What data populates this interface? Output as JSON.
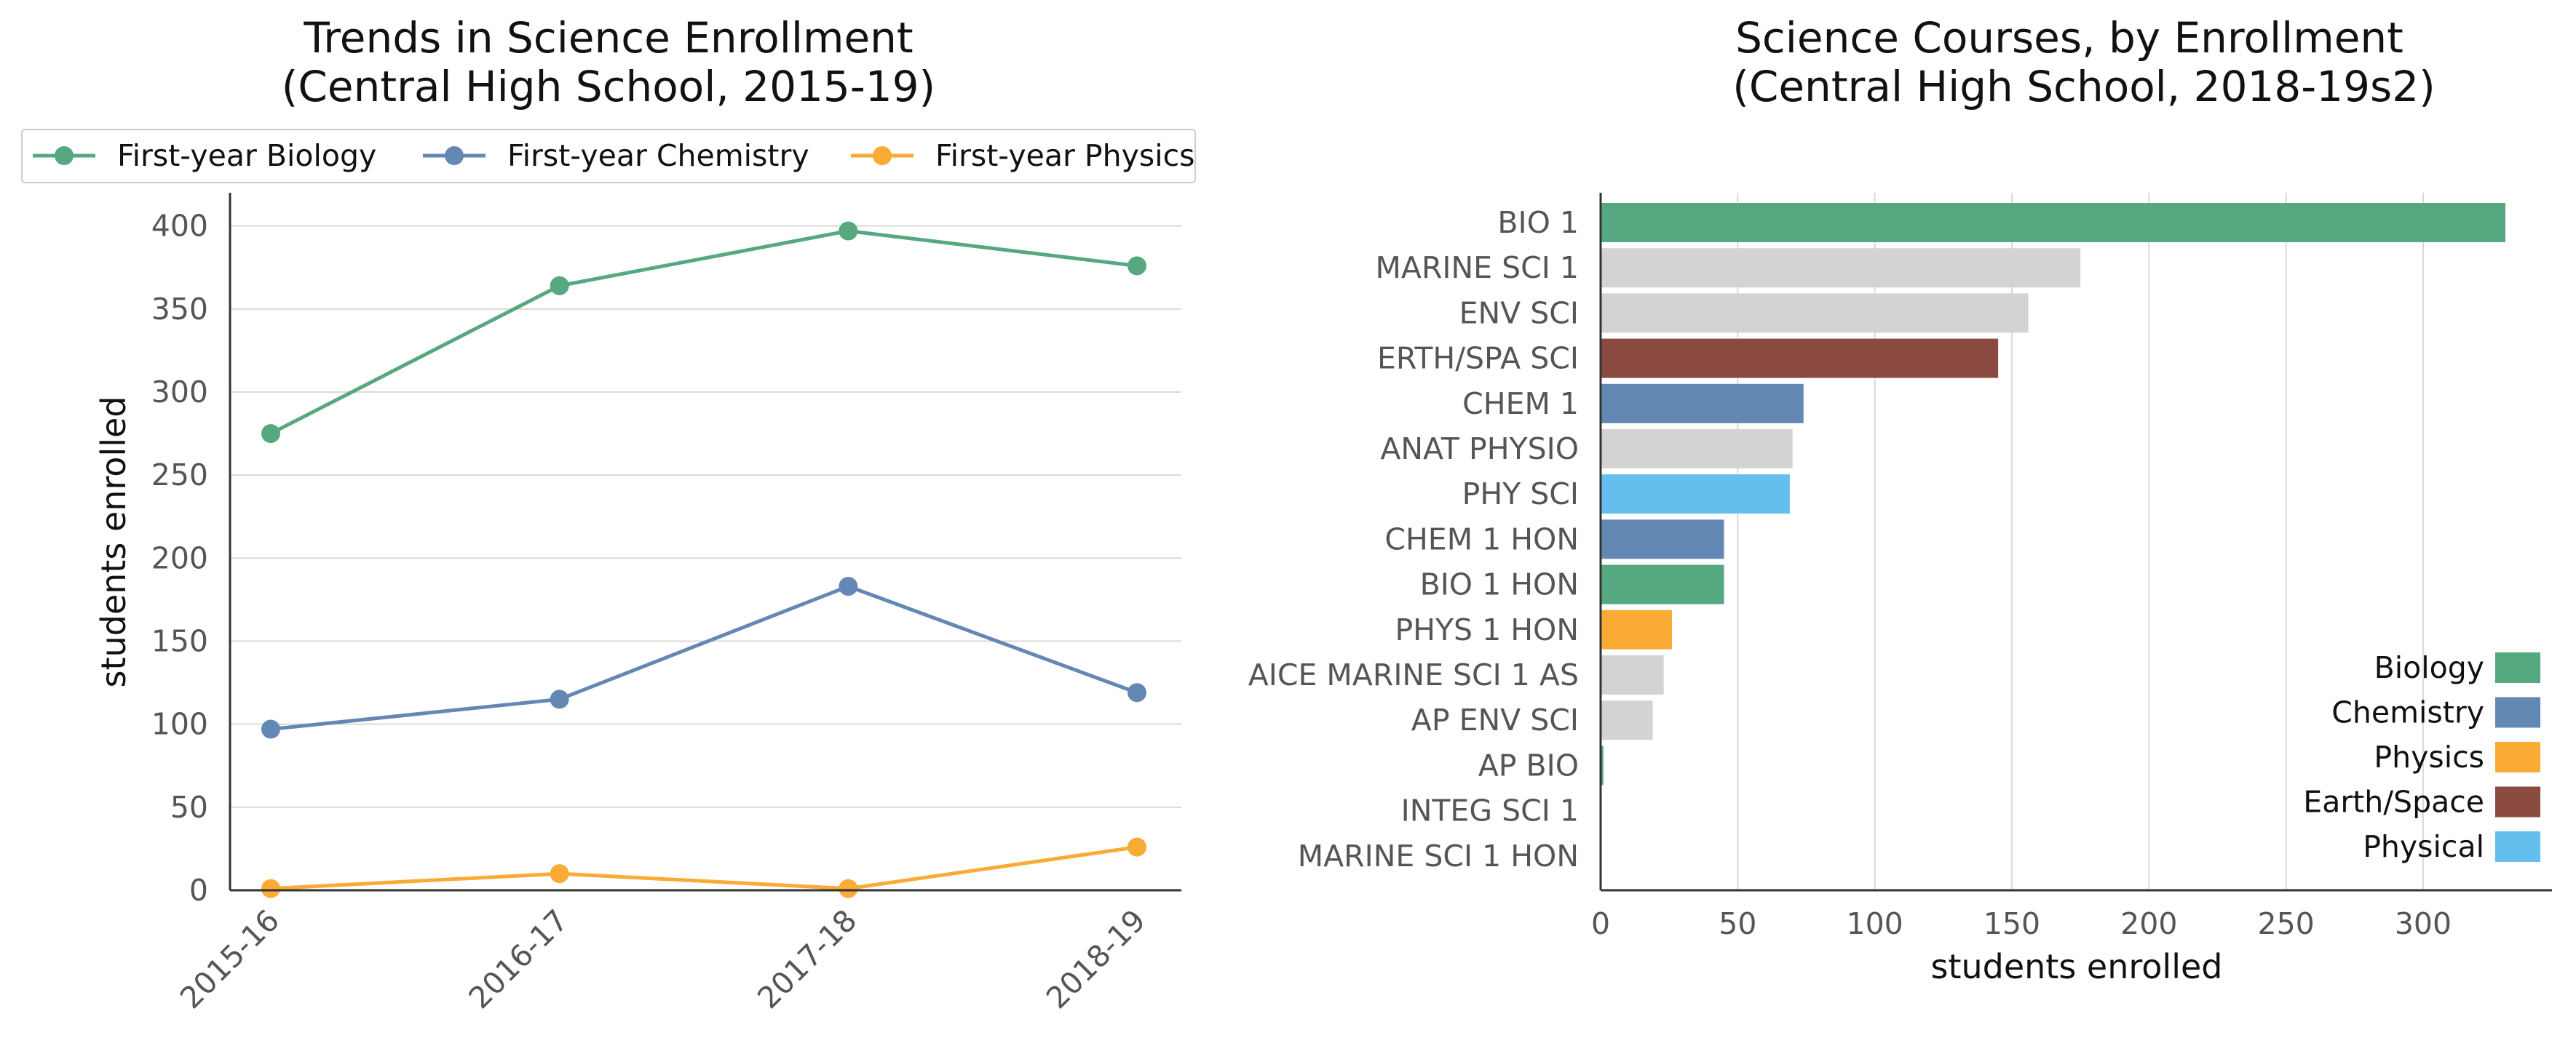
{
  "colors": {
    "biology": "#55a880",
    "chemistry": "#6488b4",
    "physics": "#f9ab36",
    "earth_space": "#8b4a40",
    "physical": "#64bfef",
    "other": "#d3d3d3"
  },
  "chart_data": [
    {
      "type": "line",
      "title_line1": "Trends in Science Enrollment",
      "title_line2": "(Central High School, 2015-19)",
      "xlabel": "",
      "ylabel": "students enrolled",
      "x": [
        "2015-16",
        "2016-17",
        "2017-18",
        "2018-19"
      ],
      "ylim": [
        0,
        420
      ],
      "yticks": [
        0,
        50,
        100,
        150,
        200,
        250,
        300,
        350,
        400
      ],
      "grid": "horizontal",
      "legend_position": "top",
      "series": [
        {
          "name": "First-year Biology",
          "color_key": "biology",
          "values": [
            275,
            364,
            397,
            376
          ]
        },
        {
          "name": "First-year Chemistry",
          "color_key": "chemistry",
          "values": [
            97,
            115,
            183,
            119
          ]
        },
        {
          "name": "First-year Physics",
          "color_key": "physics",
          "values": [
            1,
            10,
            1,
            26
          ]
        }
      ]
    },
    {
      "type": "bar",
      "orientation": "horizontal",
      "title_line1": "Science Courses, by Enrollment",
      "title_line2": "(Central High School, 2018-19s2)",
      "xlabel": "students enrolled",
      "ylabel": "",
      "xlim": [
        0,
        347
      ],
      "xticks": [
        0,
        50,
        100,
        150,
        200,
        250,
        300
      ],
      "grid": "vertical",
      "legend_position": "lower right",
      "categories": [
        "BIO 1",
        "MARINE SCI 1",
        "ENV SCI",
        "ERTH/SPA SCI",
        "CHEM 1",
        "ANAT PHYSIO",
        "PHY SCI",
        "CHEM 1 HON",
        "BIO 1 HON",
        "PHYS 1 HON",
        "AICE MARINE SCI 1 AS",
        "AP ENV SCI",
        "AP BIO",
        "INTEG SCI 1",
        "MARINE SCI 1 HON"
      ],
      "values": [
        330,
        175,
        156,
        145,
        74,
        70,
        69,
        45,
        45,
        26,
        23,
        19,
        1,
        0,
        0
      ],
      "bar_color_keys": [
        "biology",
        "other",
        "other",
        "earth_space",
        "chemistry",
        "other",
        "physical",
        "chemistry",
        "biology",
        "physics",
        "other",
        "other",
        "biology",
        "other",
        "other"
      ],
      "legend": [
        {
          "label": "Biology",
          "color_key": "biology"
        },
        {
          "label": "Chemistry",
          "color_key": "chemistry"
        },
        {
          "label": "Physics",
          "color_key": "physics"
        },
        {
          "label": "Earth/Space",
          "color_key": "earth_space"
        },
        {
          "label": "Physical",
          "color_key": "physical"
        }
      ]
    }
  ]
}
